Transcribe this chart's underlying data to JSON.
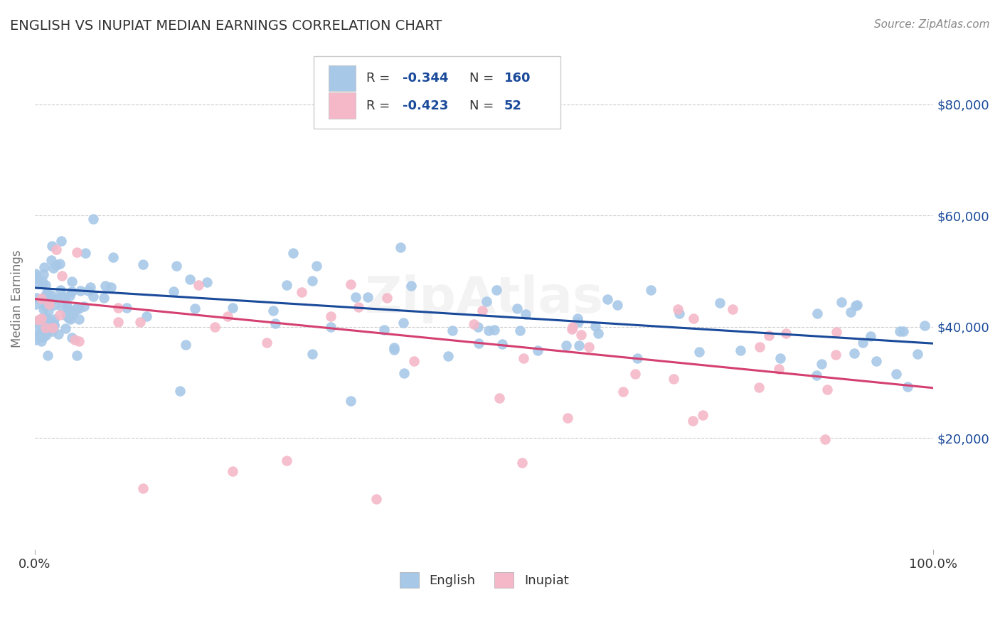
{
  "title": "ENGLISH VS INUPIAT MEDIAN EARNINGS CORRELATION CHART",
  "source": "Source: ZipAtlas.com",
  "ylabel": "Median Earnings",
  "xlim": [
    0,
    1
  ],
  "ylim": [
    0,
    90000
  ],
  "yticks": [
    0,
    20000,
    40000,
    60000,
    80000
  ],
  "ytick_labels": [
    "",
    "$20,000",
    "$40,000",
    "$60,000",
    "$80,000"
  ],
  "english_color": "#a8c8e8",
  "inupiat_color": "#f4b8c8",
  "line_english_color": "#1a4a9a",
  "line_inupiat_color": "#d44070",
  "legend_text_color": "#1a4a9a",
  "title_color": "#333333",
  "grid_color": "#cccccc",
  "background_color": "#ffffff",
  "english_R": -0.344,
  "english_N": 160,
  "inupiat_R": -0.423,
  "inupiat_N": 52,
  "eng_line_x0": 0,
  "eng_line_x1": 1,
  "eng_line_y0": 47000,
  "eng_line_y1": 37000,
  "inp_line_x0": 0,
  "inp_line_x1": 1,
  "inp_line_y0": 45000,
  "inp_line_y1": 29000
}
